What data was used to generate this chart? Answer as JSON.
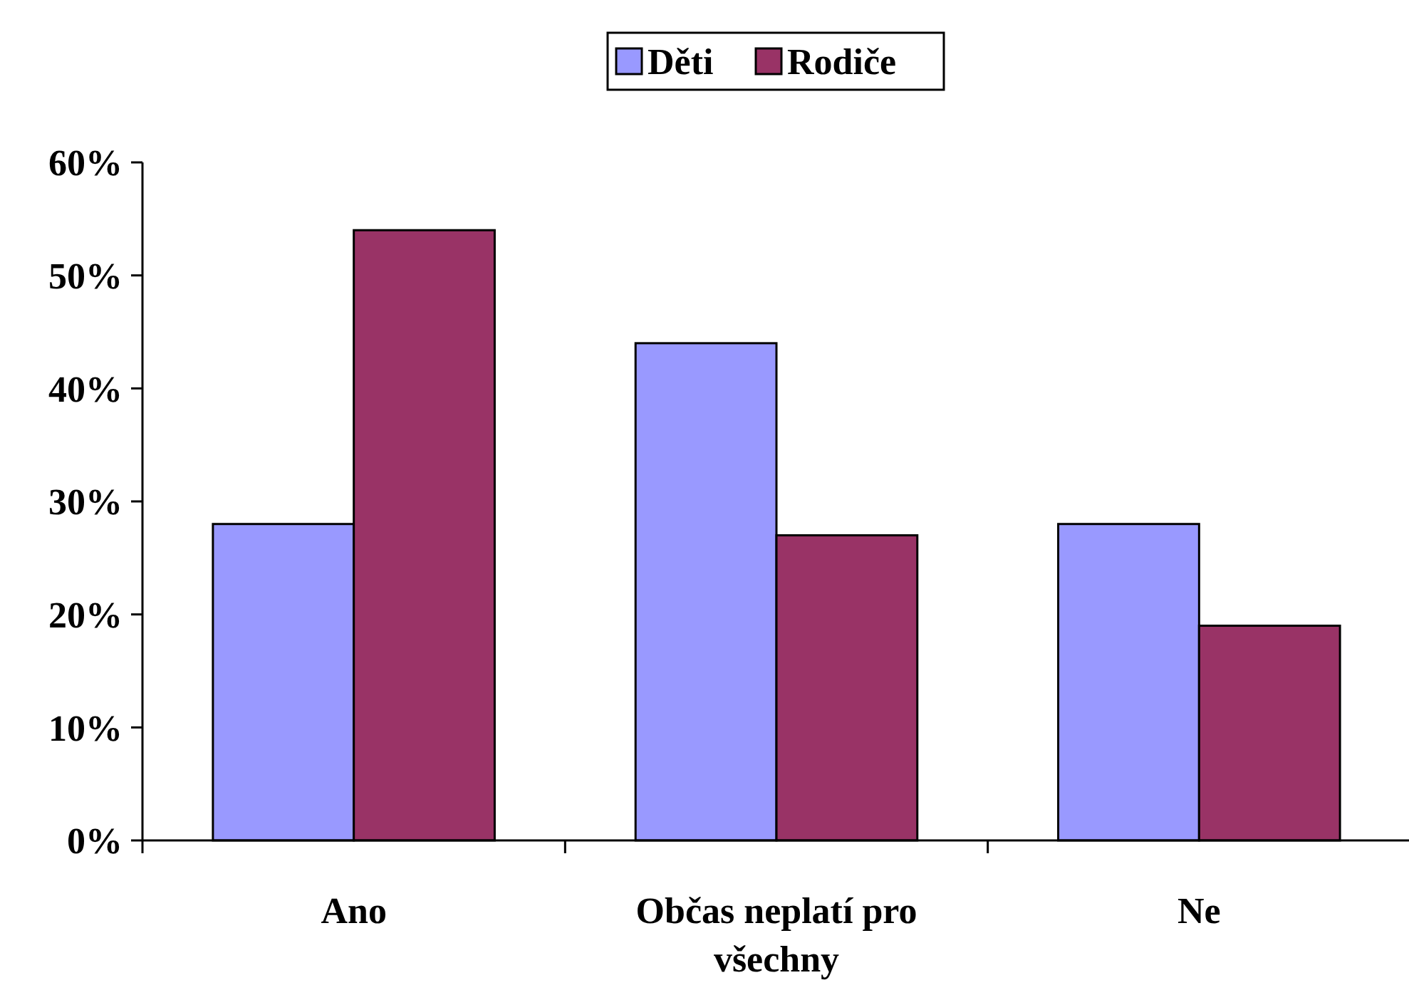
{
  "chart_data": {
    "type": "bar",
    "categories": [
      "Ano",
      "Občas neplatí pro všechny",
      "Ne"
    ],
    "series": [
      {
        "name": "Děti",
        "color": "#9999ff",
        "values": [
          28,
          44,
          28
        ]
      },
      {
        "name": "Rodiče",
        "color": "#993366",
        "values": [
          54,
          27,
          19
        ]
      }
    ],
    "ylim": [
      0,
      60
    ],
    "yticks": [
      {
        "value": 0,
        "label": "0%"
      },
      {
        "value": 10,
        "label": "10%"
      },
      {
        "value": 20,
        "label": "20%"
      },
      {
        "value": 30,
        "label": "30%"
      },
      {
        "value": 40,
        "label": "40%"
      },
      {
        "value": 50,
        "label": "50%"
      },
      {
        "value": 60,
        "label": "60%"
      }
    ],
    "legend": "top",
    "grid": false
  }
}
